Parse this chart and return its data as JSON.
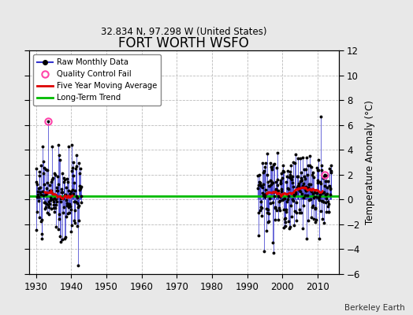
{
  "title": "FORT WORTH WSFO",
  "subtitle": "32.834 N, 97.298 W (United States)",
  "ylabel": "Temperature Anomaly (°C)",
  "credit": "Berkeley Earth",
  "xlim": [
    1928,
    2016
  ],
  "ylim": [
    -6,
    12
  ],
  "yticks": [
    -6,
    -4,
    -2,
    0,
    2,
    4,
    6,
    8,
    10,
    12
  ],
  "xticks": [
    1930,
    1940,
    1950,
    1960,
    1970,
    1980,
    1990,
    2000,
    2010
  ],
  "bg_color": "#e8e8e8",
  "plot_bg": "#ffffff",
  "long_term_trend_y": 0.3,
  "long_term_trend_color": "#00bb00",
  "moving_avg_color": "#dd0000",
  "raw_line_color": "#3333cc",
  "raw_dot_color": "#000000",
  "qc_fail_color": "#ff44aa",
  "qc_fail_early": [
    [
      1933.5,
      6.3
    ]
  ],
  "qc_fail_late": [
    [
      2012.0,
      2.0
    ]
  ],
  "early_seed": 10,
  "late_seed": 20,
  "early_start": 1930,
  "early_end": 1942,
  "late_start": 1993,
  "late_end": 2013,
  "early_mean": 0.2,
  "early_std": 1.7,
  "late_mean": 0.6,
  "late_std": 1.5,
  "early_outlier_low_year": 1942.0,
  "early_outlier_low_val": -5.3,
  "late_outlier_high_year": 2011.0,
  "late_outlier_high_val": 6.7,
  "late_outlier_low_year": 1997.5,
  "late_outlier_low_val": -4.3,
  "ma_window": 60
}
